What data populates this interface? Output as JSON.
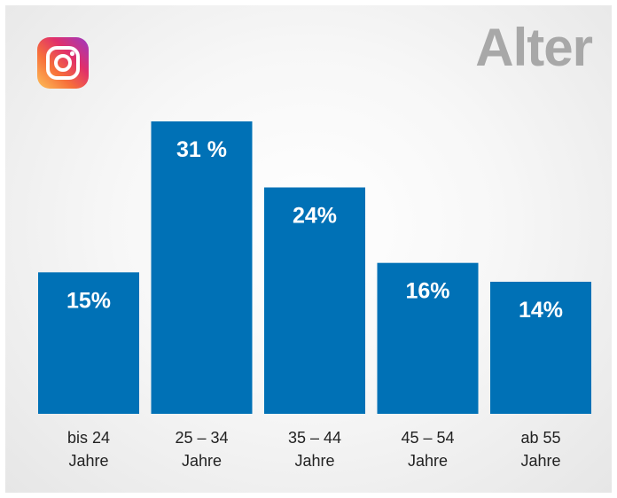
{
  "header": {
    "title": "Alter",
    "logo_icon": "instagram-icon"
  },
  "colors": {
    "bar": "#0071b6",
    "title": "#a8a8a8",
    "value_label": "#ffffff"
  },
  "chart_data": {
    "type": "bar",
    "title": "Alter",
    "categories": [
      [
        "bis 24",
        "Jahre"
      ],
      [
        "25 – 34",
        "Jahre"
      ],
      [
        "35 – 44",
        "Jahre"
      ],
      [
        "45 – 54",
        "Jahre"
      ],
      [
        "ab 55",
        "Jahre"
      ]
    ],
    "values": [
      15,
      31,
      24,
      16,
      14
    ],
    "value_labels": [
      "15%",
      "31 %",
      "24%",
      "16%",
      "14%"
    ],
    "ylim": [
      0,
      31
    ],
    "grid": false,
    "legend": "none"
  }
}
